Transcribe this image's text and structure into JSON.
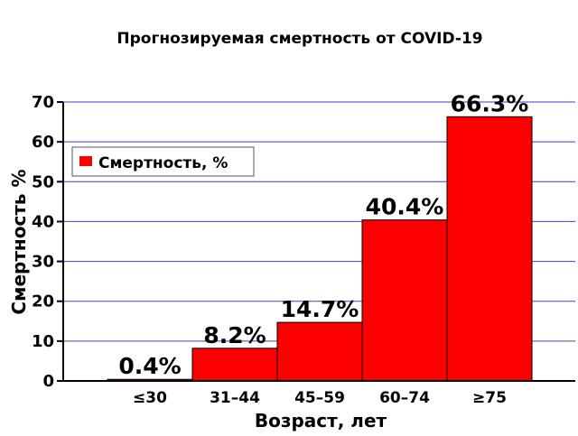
{
  "chart_data": {
    "type": "bar",
    "title": "Прогнозируемая смертность от COVID-19",
    "xlabel": "Возраст, лет",
    "ylabel": "Смертность %",
    "categories": [
      "≤30",
      "31–44",
      "45–59",
      "60–74",
      "≥75"
    ],
    "series": [
      {
        "name": "Смертность, %",
        "values": [
          0.4,
          8.2,
          14.7,
          40.4,
          66.3
        ],
        "color": "#ff0000"
      }
    ],
    "data_labels": [
      "0.4%",
      "8.2%",
      "14.7%",
      "40.4%",
      "66.3%"
    ],
    "yticks": [
      0,
      10,
      20,
      30,
      40,
      50,
      60,
      70
    ],
    "ylim": [
      0,
      70
    ],
    "grid": true,
    "grid_color": "#3f3fbf",
    "legend_position": "top-left"
  }
}
